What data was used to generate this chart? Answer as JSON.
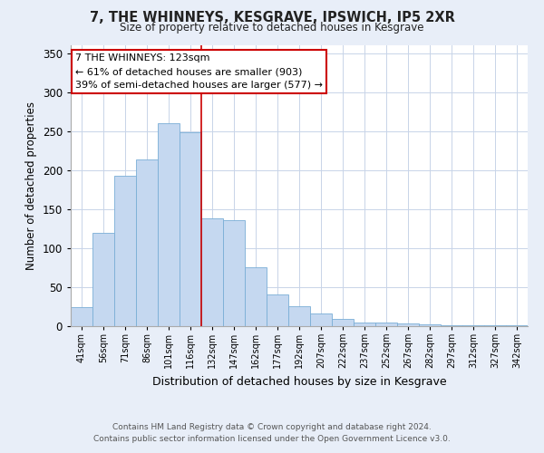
{
  "title": "7, THE WHINNEYS, KESGRAVE, IPSWICH, IP5 2XR",
  "subtitle": "Size of property relative to detached houses in Kesgrave",
  "xlabel": "Distribution of detached houses by size in Kesgrave",
  "ylabel": "Number of detached properties",
  "bar_color": "#c5d8f0",
  "bar_edge_color": "#7aaed6",
  "categories": [
    "41sqm",
    "56sqm",
    "71sqm",
    "86sqm",
    "101sqm",
    "116sqm",
    "132sqm",
    "147sqm",
    "162sqm",
    "177sqm",
    "192sqm",
    "207sqm",
    "222sqm",
    "237sqm",
    "252sqm",
    "267sqm",
    "282sqm",
    "297sqm",
    "312sqm",
    "327sqm",
    "342sqm"
  ],
  "values": [
    24,
    120,
    193,
    214,
    260,
    248,
    138,
    136,
    76,
    41,
    25,
    16,
    9,
    5,
    5,
    3,
    2,
    1,
    1,
    1,
    1
  ],
  "ylim": [
    0,
    360
  ],
  "yticks": [
    0,
    50,
    100,
    150,
    200,
    250,
    300,
    350
  ],
  "vline_x_index": 5.5,
  "annotation_title": "7 THE WHINNEYS: 123sqm",
  "annotation_line1": "← 61% of detached houses are smaller (903)",
  "annotation_line2": "39% of semi-detached houses are larger (577) →",
  "annotation_box_color": "#ffffff",
  "annotation_box_edge_color": "#cc0000",
  "vline_color": "#cc0000",
  "footer_line1": "Contains HM Land Registry data © Crown copyright and database right 2024.",
  "footer_line2": "Contains public sector information licensed under the Open Government Licence v3.0.",
  "background_color": "#e8eef8",
  "plot_background_color": "#ffffff",
  "grid_color": "#c8d4e8"
}
